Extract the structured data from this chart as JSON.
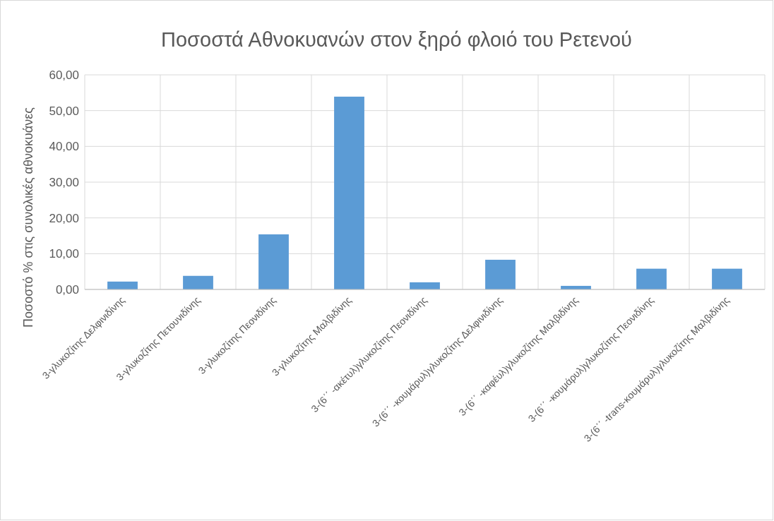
{
  "chart_data": {
    "type": "bar",
    "title": "Ποσοστά Αθνοκυανών στον ξηρό φλοιό του Ρετενού",
    "ylabel": "Ποσοστό % στις συνολικές αθνοκυάνες",
    "categories": [
      "3-γλυκοζίτης Δελφινιδίνης",
      "3-γλυκοζίτης Πετουνιδίνης",
      "3-γλυκοζίτης Πεονιδίνης",
      "3-γλυκοζίτης Μαλβιδίνης",
      "3-(6΄΄ -ακέτυλ)γλυκοζίτης Πεονιδίνης",
      "3-(6΄΄ -κουμάρυλ)γλυκοζίτης Δελφινιδίνης",
      "3-(6΄΄ -καφέυλ)γλυκοζίτης Μαλβιδίνης",
      "3-(6΄΄ -κουμάρυλ)γλυκοζίτης Πεονιδίνης",
      "3-(6΄΄ -trans-κουμάρυλ)γλυκοζίτης Μαλβιδίνης"
    ],
    "values": [
      2.2,
      3.8,
      15.4,
      53.9,
      2.0,
      8.3,
      1.0,
      5.8,
      5.8
    ],
    "color": "#5b9bd5",
    "ylim": [
      0,
      60
    ],
    "yticks": [
      {
        "value": 0,
        "label": "0,00"
      },
      {
        "value": 10,
        "label": "10,00"
      },
      {
        "value": 20,
        "label": "20,00"
      },
      {
        "value": 30,
        "label": "30,00"
      },
      {
        "value": 40,
        "label": "40,00"
      },
      {
        "value": 50,
        "label": "50,00"
      },
      {
        "value": 60,
        "label": "60,00"
      }
    ],
    "grid": true
  }
}
